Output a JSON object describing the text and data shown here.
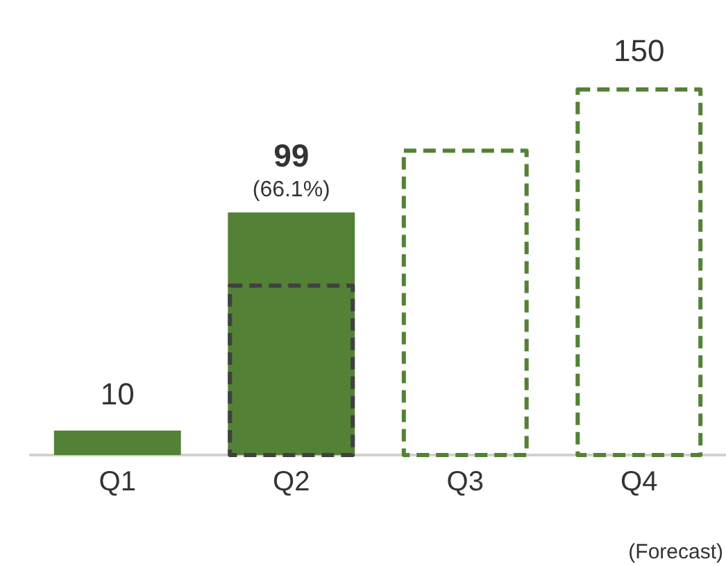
{
  "chart_data": {
    "type": "bar",
    "categories": [
      "Q1",
      "Q2",
      "Q3",
      "Q4"
    ],
    "series": [
      {
        "color": "#538135",
        "values": [
          10,
          99,
          null,
          null
        ],
        "value_labels": [
          "10",
          "99",
          null,
          null
        ]
      },
      {
        "color": "#538135",
        "line_style": "dashed",
        "values": [
          null,
          null,
          125,
          150
        ],
        "value_labels": [
          null,
          null,
          null,
          "150"
        ]
      },
      {
        "color": "#404040",
        "line_style": "dashed",
        "values": [
          null,
          70,
          null,
          null
        ]
      }
    ],
    "annotations": [
      {
        "text": "(66.1%)",
        "x": "Q2",
        "y": 99
      },
      "(Forecast)"
    ],
    "grid": false,
    "legend": false
  }
}
